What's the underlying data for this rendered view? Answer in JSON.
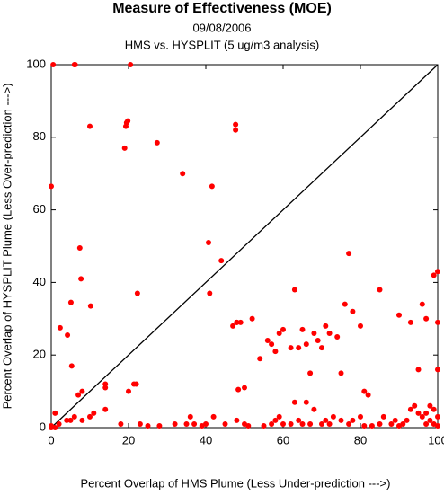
{
  "chart_data": {
    "type": "scatter",
    "title": "Measure of Effectiveness (MOE)",
    "subtitle": "09/08/2006",
    "subtitle2": "HMS vs. HYSPLIT  (5 ug/m3 analysis)",
    "x_label": "Percent Overlap of HMS Plume (Less Under-prediction --->)",
    "y_label": "Percent Overlap of HYSPLIT Plume (Less Over-prediction --->)",
    "color": "#ff0000",
    "diagonal_line": true,
    "xlim": [
      0,
      100
    ],
    "ylim": [
      0,
      100
    ],
    "xticks": [
      0,
      20,
      40,
      60,
      80,
      100
    ],
    "yticks": [
      0,
      20,
      40,
      60,
      80,
      100
    ],
    "x": [
      0.5,
      6,
      6.2,
      20.5,
      0,
      10,
      19.3,
      19.5,
      19.8,
      27.4,
      19,
      34,
      41.6,
      40.7,
      44,
      41,
      7.4,
      7.7,
      10.2,
      5.1,
      5.3,
      21.4,
      22.3,
      2.3,
      4.2,
      47.7,
      47.7,
      48,
      48.4,
      0,
      1,
      0,
      2,
      4,
      5,
      6,
      8,
      10,
      1,
      7,
      8,
      11,
      14,
      14,
      14,
      18,
      20,
      22,
      23,
      25,
      28,
      32,
      35,
      36,
      37,
      39,
      40,
      42,
      45,
      48,
      50,
      51,
      55,
      57,
      58,
      59,
      60,
      62,
      63,
      64,
      65,
      66,
      67,
      68,
      70,
      71,
      72,
      73,
      75,
      77,
      78,
      80,
      81,
      83,
      85,
      86,
      88,
      89,
      90,
      91,
      92,
      93,
      94,
      95,
      96,
      97,
      98,
      99,
      100,
      99,
      100,
      98,
      97,
      47,
      48,
      49,
      50,
      52,
      54,
      56,
      57,
      58,
      59,
      60,
      62,
      63,
      64,
      65,
      66,
      67,
      68,
      69,
      70,
      71,
      72,
      74,
      75,
      76,
      77,
      78,
      80,
      81,
      82,
      85,
      90,
      93,
      95,
      96,
      97,
      99,
      100,
      100,
      100
    ],
    "values": [
      100,
      100,
      100,
      100,
      66.5,
      83,
      83,
      84,
      84.5,
      78.5,
      77,
      70,
      66.5,
      51,
      46,
      37,
      49.5,
      41,
      33.5,
      34.5,
      17,
      12,
      37,
      27.5,
      25.5,
      82,
      83.5,
      29,
      10.5,
      0,
      0,
      0.5,
      1,
      2,
      2,
      3,
      2,
      3,
      4,
      9,
      10,
      4,
      11,
      12,
      5,
      1,
      10,
      12,
      1,
      0.5,
      0.5,
      1,
      1,
      3,
      1,
      0.5,
      1,
      3,
      1,
      2,
      1,
      0.5,
      0.5,
      1,
      2,
      3,
      1,
      1,
      7,
      2,
      1,
      7,
      1,
      5,
      1,
      2,
      1,
      3,
      2,
      1,
      2,
      3,
      0.5,
      0.5,
      1,
      3,
      1,
      2,
      0.5,
      1,
      2,
      5,
      6,
      4,
      3,
      1,
      2,
      1,
      0.5,
      5,
      3,
      6,
      4,
      28,
      29,
      29,
      11,
      30,
      19,
      24,
      23,
      21,
      26,
      27,
      22,
      38,
      22,
      27,
      23,
      15,
      26,
      24,
      22,
      28,
      26,
      25,
      15,
      34,
      48,
      32,
      28,
      10,
      9,
      38,
      31,
      29,
      16,
      34,
      30,
      42,
      43,
      29,
      16
    ]
  }
}
